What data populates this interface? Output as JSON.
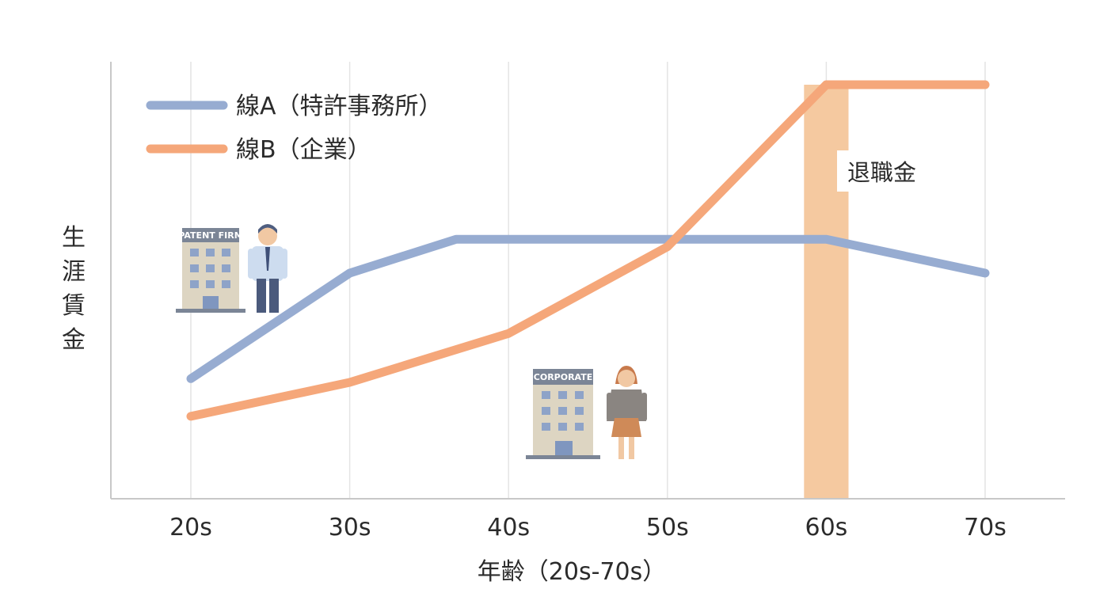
{
  "chart_data": {
    "type": "line",
    "x": [
      "20s",
      "30s",
      "40s",
      "50s",
      "60s",
      "70s"
    ],
    "xlabel": "年齢（20s-70s）",
    "ylabel": "生涯賃金",
    "grid": "vertical",
    "legend_position": "top-left",
    "series": [
      {
        "name": "線A（特許事務所）",
        "color": "#97acd1",
        "points": [
          [
            0,
            22
          ],
          [
            1,
            50
          ],
          [
            1.67,
            59
          ],
          [
            4,
            59
          ],
          [
            5,
            50
          ]
        ]
      },
      {
        "name": "線B（企業）",
        "color": "#f5a77a",
        "points": [
          [
            0,
            12
          ],
          [
            1,
            21
          ],
          [
            2,
            34
          ],
          [
            3,
            57
          ],
          [
            4,
            100
          ],
          [
            5,
            100
          ]
        ]
      }
    ],
    "annotations": [
      {
        "label": "退職金",
        "x_from": 3.86,
        "x_to": 4.14,
        "color": "#f5c9a0"
      }
    ],
    "illustrations": [
      {
        "name": "patent-firm",
        "sign": "PATENT FIRM"
      },
      {
        "name": "corporate",
        "sign": "CORPORATE"
      }
    ],
    "y_range": [
      0,
      110
    ]
  }
}
